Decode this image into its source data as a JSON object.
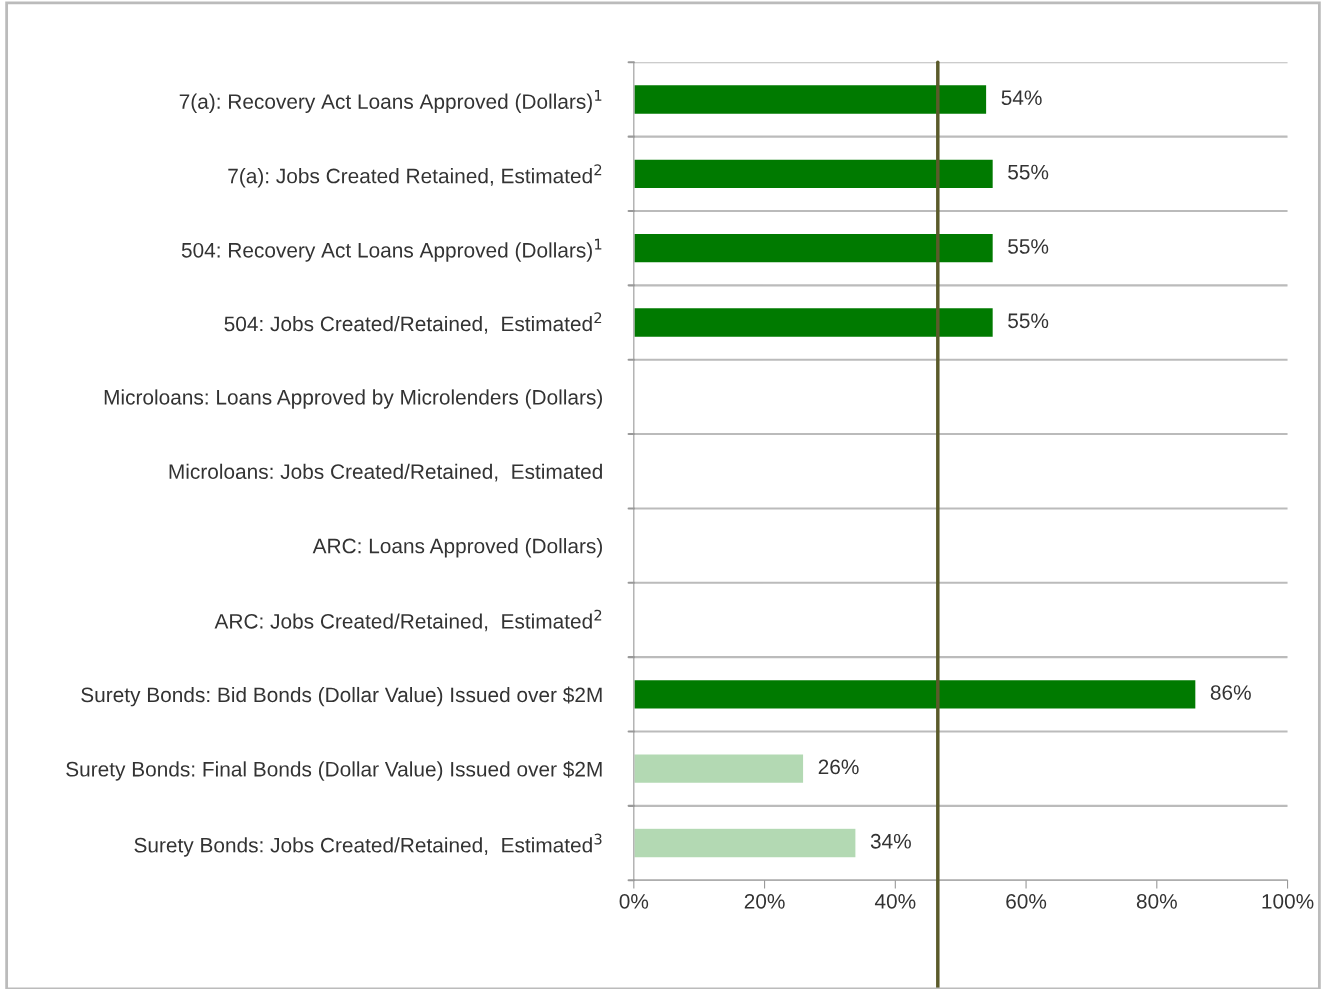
{
  "chart_data": {
    "type": "bar",
    "orientation": "horizontal",
    "categories": [
      "7(a): Recovery Act Loans Approved (Dollars)$^{1}$",
      "7(a): Jobs Created Retained, Estimated$^{2}$",
      "504: Recovery Act Loans Approved (Dollars)$^{1}$",
      "504: Jobs Created/Retained,  Estimated$^{2}$",
      "Microloans: Loans Approved by Microlenders (Dollars)",
      "Microloans: Jobs Created/Retained,  Estimated",
      "ARC: Loans Approved (Dollars)",
      "ARC: Jobs Created/Retained,  Estimated$^{2}$",
      "Surety Bonds: Bid Bonds (Dollar Value) Issued over $2M",
      "Surety Bonds: Final Bonds (Dollar Value) Issued over $2M",
      "Surety Bonds: Jobs Created/Retained,  Estimated$^{3}$"
    ],
    "values": [
      54,
      55,
      55,
      55,
      null,
      null,
      null,
      null,
      86,
      26,
      34
    ],
    "colors": [
      "#007a00",
      "#007a00",
      "#007a00",
      "#007a00",
      "#007a00",
      "#007a00",
      "#007a00",
      "#007a00",
      "#007a00",
      "#b3d9b3",
      "#b3d9b3"
    ],
    "value_labels": [
      "54%",
      "55%",
      "55%",
      "55%",
      null,
      null,
      null,
      null,
      "86%",
      "26%",
      "34%"
    ],
    "xlim": [
      0,
      100
    ],
    "xticks": [
      {
        "value": 0,
        "label": "0%"
      },
      {
        "value": 20,
        "label": "20%"
      },
      {
        "value": 40,
        "label": "40%"
      },
      {
        "value": 60,
        "label": "60%"
      },
      {
        "value": 80,
        "label": "80%"
      },
      {
        "value": 100,
        "label": "100%"
      }
    ],
    "ref_lines": [
      {
        "axis": "x",
        "value": 46.5,
        "color": "#5b5b2b"
      }
    ],
    "grid": "y",
    "legend": false
  }
}
